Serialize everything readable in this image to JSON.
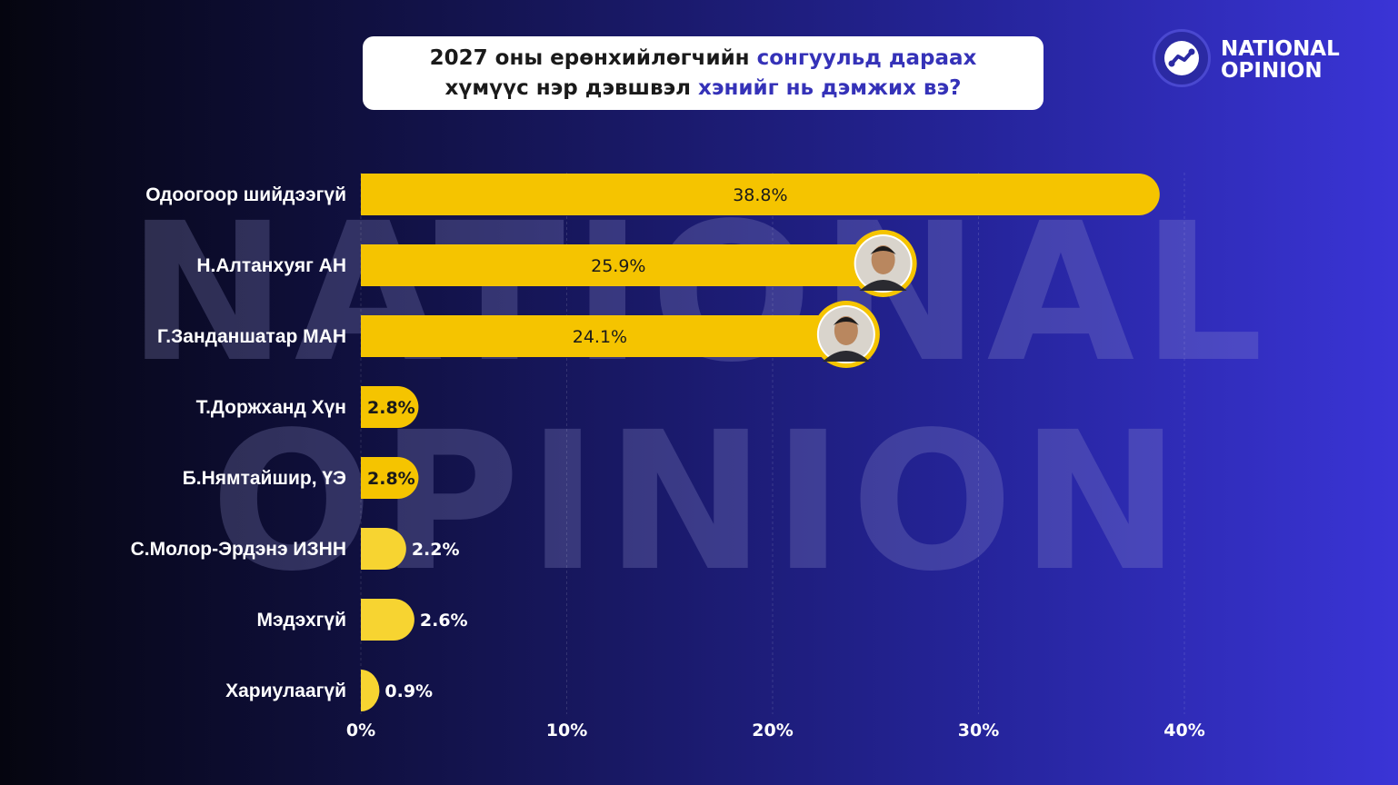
{
  "title": {
    "line1_before": "2027 оны ерөнхийлөгчийн ",
    "line1_accent": "сонгуульд дараах",
    "line2_before": "хүмүүс нэр дэвшвэл ",
    "line2_accent": "хэнийг нь дэмжих вэ?"
  },
  "logo": {
    "line1": "NATIONAL",
    "line2": "OPINION",
    "icon": "trend-line-icon"
  },
  "watermark": {
    "line1": "NATIONAL",
    "line2": "OPINION"
  },
  "colors": {
    "bar": "#f5c400",
    "bar_light": "#f7d431",
    "accent": "#3532b8"
  },
  "chart_data": {
    "type": "bar",
    "orientation": "horizontal",
    "categories": [
      "Одоогоор шийдээгүй",
      "Н.Алтанхуяг АН",
      "Г.Занданшатар МАН",
      "Т.Доржханд Хүн",
      "Б.Нямтайшир, ҮЭ",
      "С.Молор-Эрдэнэ ИЗНН",
      "Мэдэхгүй",
      "Хариулаагүй"
    ],
    "values": [
      38.8,
      25.9,
      24.1,
      2.8,
      2.8,
      2.2,
      2.6,
      0.9
    ],
    "value_labels": [
      "38.8%",
      "25.9%",
      "24.1%",
      "2.8%",
      "2.8%",
      "2.2%",
      "2.6%",
      "0.9%"
    ],
    "xlim": [
      0,
      40
    ],
    "xticks": [
      0,
      10,
      20,
      30,
      40
    ],
    "xtick_labels": [
      "0%",
      "10%",
      "20%",
      "30%",
      "40%"
    ],
    "grid": true,
    "avatars": [
      1,
      2
    ]
  }
}
